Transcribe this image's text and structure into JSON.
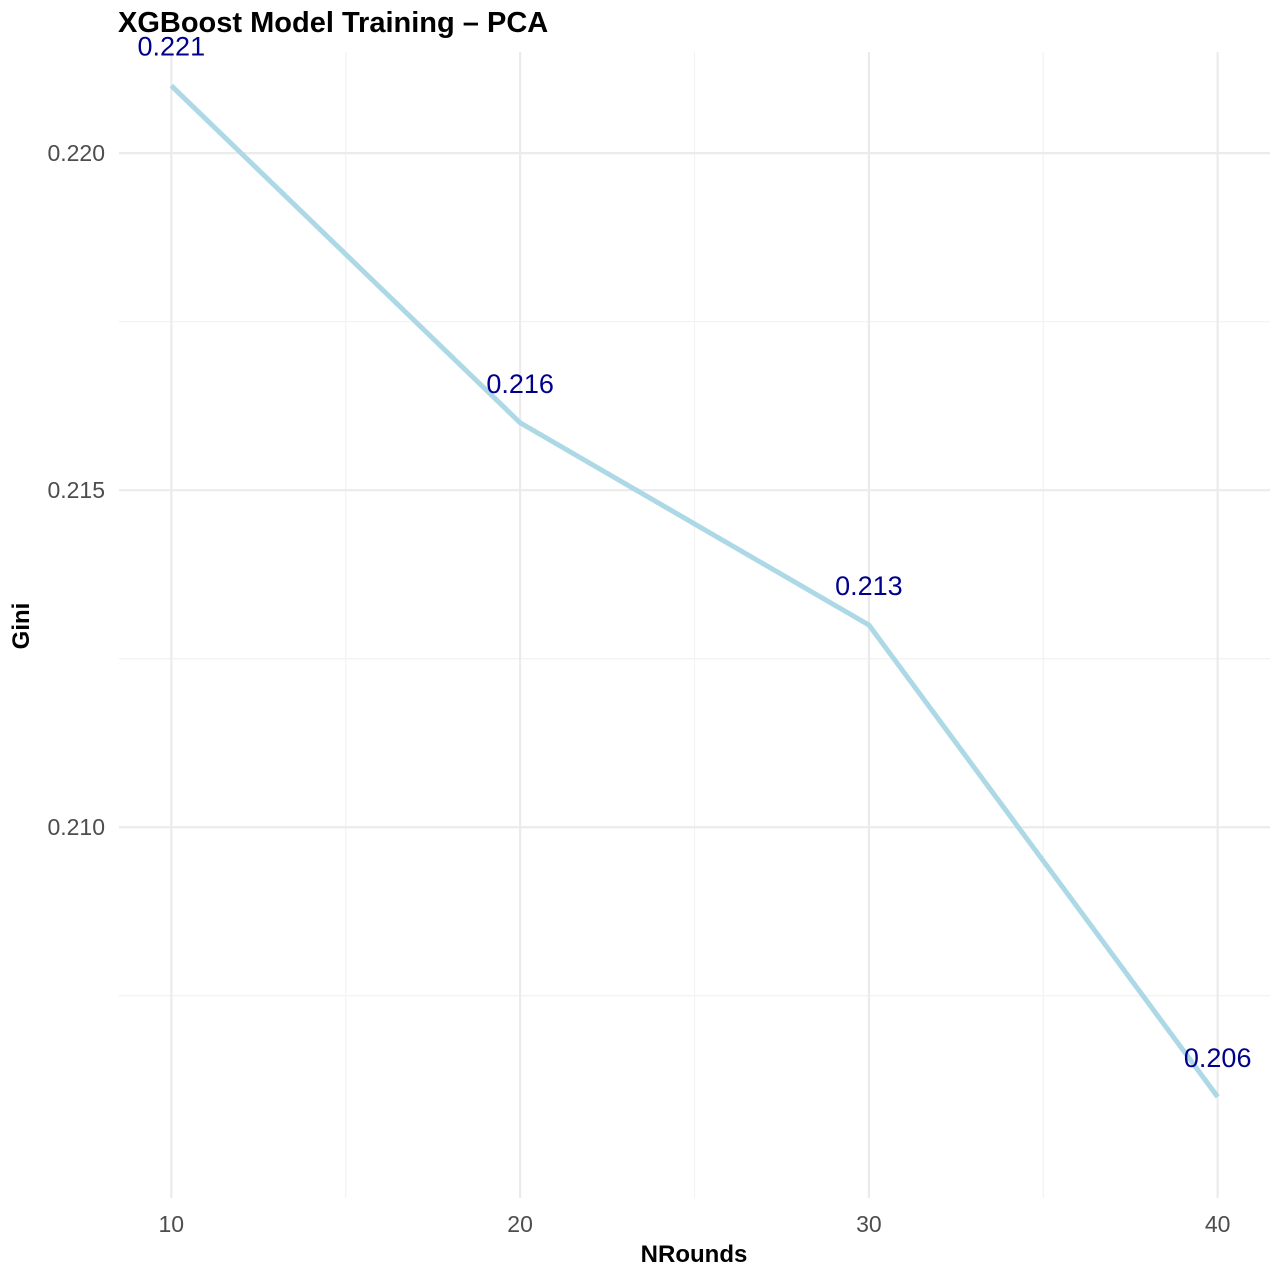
{
  "chart_data": {
    "type": "line",
    "title": "XGBoost Model Training – PCA",
    "xlabel": "NRounds",
    "ylabel": "Gini",
    "x": [
      10,
      20,
      30,
      40
    ],
    "series": [
      {
        "values": [
          0.221,
          0.216,
          0.213,
          0.206
        ],
        "labels": [
          "0.221",
          "0.216",
          "0.213",
          "0.206"
        ]
      }
    ],
    "x_ticks": [
      "10",
      "20",
      "30",
      "40"
    ],
    "y_ticks": [
      "0.210",
      "0.215",
      "0.220"
    ],
    "xlim": [
      8.5,
      41.5
    ],
    "ylim": [
      0.2045,
      0.2215
    ],
    "grid": true,
    "colors": {
      "line": "#add8e6",
      "label": "#00008b",
      "grid_major": "#ebebeb",
      "grid_minor": "#f3f3f3"
    }
  }
}
